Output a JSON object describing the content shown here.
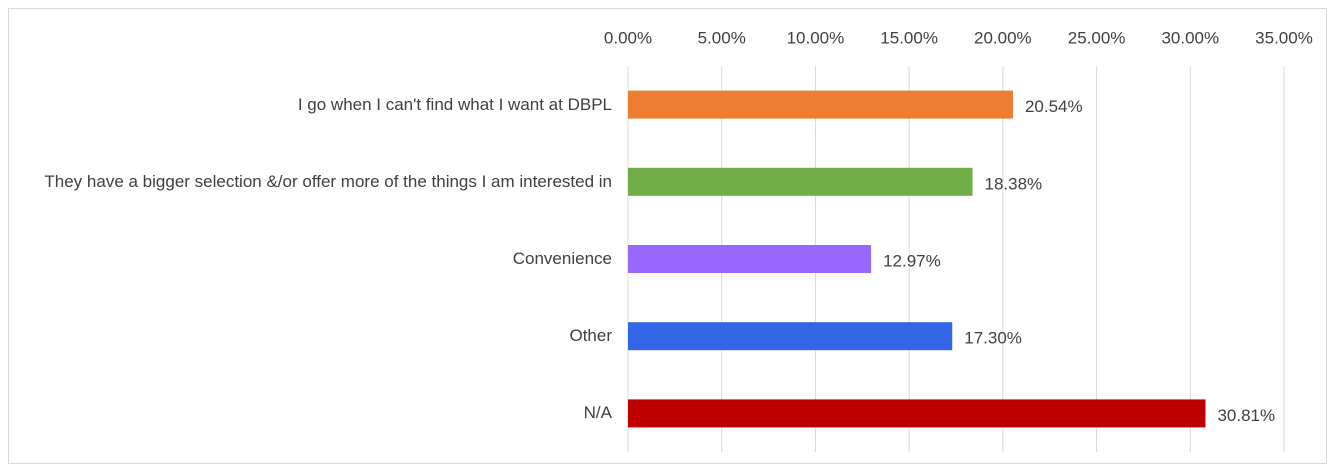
{
  "chart_data": {
    "type": "bar",
    "orientation": "horizontal",
    "categories": [
      "I go when I can't find what I want at DBPL",
      "They have a bigger selection &/or offer more of the things I am interested in",
      "Convenience",
      "Other",
      "N/A"
    ],
    "values": [
      20.54,
      18.38,
      12.97,
      17.3,
      30.81
    ],
    "value_labels": [
      "20.54%",
      "18.38%",
      "12.97%",
      "17.30%",
      "30.81%"
    ],
    "colors": [
      "#ed7d31",
      "#70ad47",
      "#9966ff",
      "#3366e6",
      "#c00000"
    ],
    "xlim": [
      0,
      35
    ],
    "xticks": [
      {
        "value": 0,
        "label": "0.00%"
      },
      {
        "value": 5,
        "label": "5.00%"
      },
      {
        "value": 10,
        "label": "10.00%"
      },
      {
        "value": 15,
        "label": "15.00%"
      },
      {
        "value": 20,
        "label": "20.00%"
      },
      {
        "value": 25,
        "label": "25.00%"
      },
      {
        "value": 30,
        "label": "30.00%"
      },
      {
        "value": 35,
        "label": "35.00%"
      }
    ],
    "grid": true
  }
}
